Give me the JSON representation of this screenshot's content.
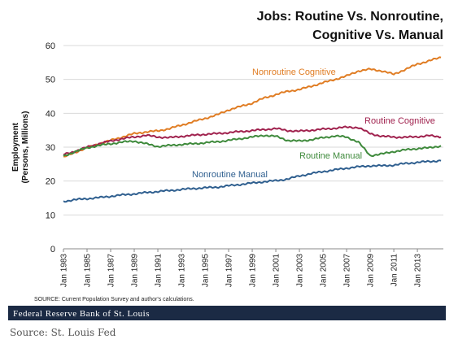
{
  "chart_data": {
    "type": "line",
    "title_line1": "Jobs: Routine Vs. Nonroutine,",
    "title_line2": "Cognitive Vs. Manual",
    "ylabel_line1": "Employment",
    "ylabel_line2": "(Persons, Millions)",
    "xlabel": "",
    "ylim": [
      0,
      60
    ],
    "yticks": [
      "0",
      "10",
      "20",
      "30",
      "40",
      "50",
      "60"
    ],
    "xlim": [
      1983.0,
      2015.2
    ],
    "xticks": [
      "Jan 1983",
      "Jan 1985",
      "Jan 1987",
      "Jan 1989",
      "Jan 1991",
      "Jan 1993",
      "Jan 1995",
      "Jan 1997",
      "Jan 1999",
      "Jan 2001",
      "Jan 2003",
      "Jan 2005",
      "Jan 2007",
      "Jan 2009",
      "Jan 2011",
      "Jan 2013"
    ],
    "grid": "horizontal",
    "x": [
      1983,
      1984,
      1985,
      1986,
      1987,
      1988,
      1989,
      1990,
      1991,
      1992,
      1993,
      1994,
      1995,
      1996,
      1997,
      1998,
      1999,
      2000,
      2001,
      2002,
      2003,
      2004,
      2005,
      2006,
      2007,
      2008,
      2009,
      2010,
      2011,
      2012,
      2013,
      2014,
      2015
    ],
    "series": [
      {
        "name": "Nonroutine Cognitive",
        "color": "#e07d24",
        "values": [
          27.0,
          28.5,
          29.8,
          31.0,
          32.0,
          33.0,
          34.0,
          34.5,
          34.8,
          35.5,
          36.5,
          37.5,
          38.5,
          39.5,
          41.0,
          42.0,
          43.0,
          44.5,
          45.5,
          46.5,
          47.0,
          48.0,
          49.0,
          50.0,
          51.0,
          52.5,
          53.0,
          52.5,
          51.5,
          53.0,
          54.5,
          55.5,
          56.5
        ]
      },
      {
        "name": "Routine Cognitive",
        "color": "#a0224e",
        "values": [
          27.8,
          28.8,
          30.0,
          31.0,
          31.8,
          32.5,
          33.0,
          33.5,
          33.0,
          32.8,
          33.2,
          33.5,
          33.8,
          34.0,
          34.3,
          34.6,
          34.9,
          35.2,
          35.5,
          34.9,
          34.7,
          35.0,
          35.3,
          35.6,
          35.9,
          35.8,
          34.0,
          33.2,
          33.0,
          32.9,
          33.1,
          33.4,
          33.0
        ]
      },
      {
        "name": "Routine Manual",
        "color": "#3f8a3c",
        "values": [
          27.3,
          28.7,
          29.8,
          30.5,
          31.0,
          31.5,
          31.8,
          31.0,
          30.2,
          30.5,
          30.8,
          31.0,
          31.3,
          31.6,
          32.0,
          32.5,
          33.0,
          33.5,
          33.2,
          32.0,
          31.8,
          32.2,
          32.8,
          33.3,
          33.0,
          31.5,
          27.5,
          28.0,
          28.7,
          29.2,
          29.6,
          29.8,
          30.4
        ]
      },
      {
        "name": "Nonroutine Manual",
        "color": "#2f5f8f",
        "values": [
          14.0,
          14.5,
          14.8,
          15.1,
          15.5,
          15.9,
          16.2,
          16.6,
          16.9,
          17.2,
          17.5,
          17.8,
          18.0,
          18.2,
          18.6,
          19.0,
          19.4,
          19.8,
          20.1,
          20.6,
          21.5,
          22.2,
          22.8,
          23.3,
          23.8,
          24.2,
          24.5,
          24.5,
          24.7,
          25.2,
          25.5,
          25.8,
          26.0
        ]
      }
    ],
    "source_note": "SOURCE: Current Population Survey and author's calculations."
  },
  "footer": {
    "banner_text": "Federal Reserve Bank of St. Louis",
    "caption": "Source: St. Louis Fed"
  }
}
